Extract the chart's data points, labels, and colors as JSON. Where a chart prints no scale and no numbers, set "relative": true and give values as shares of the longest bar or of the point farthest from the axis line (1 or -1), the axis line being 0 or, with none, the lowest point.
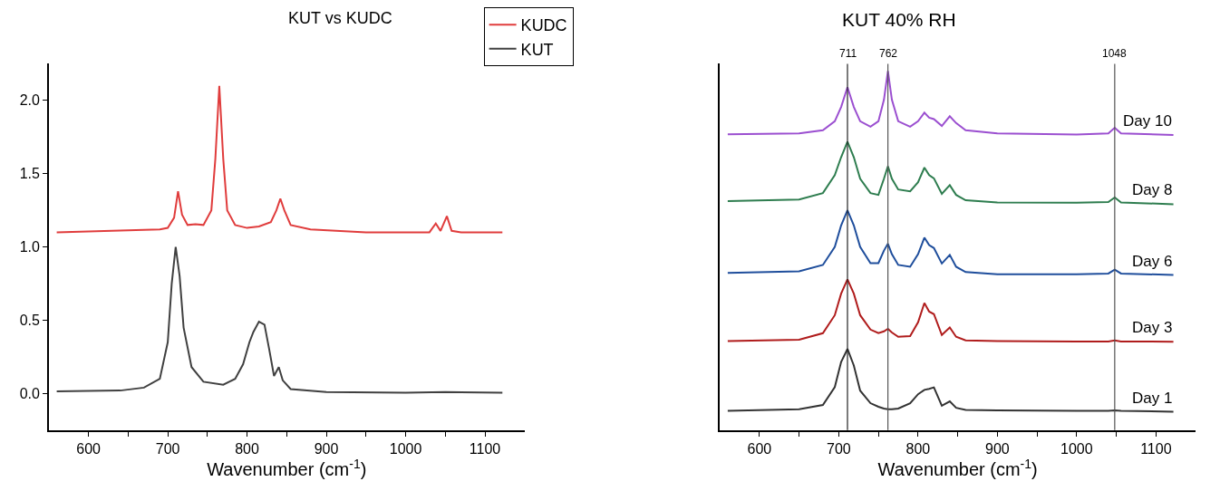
{
  "chart_data": [
    {
      "type": "line",
      "title": "KUT vs KUDC",
      "xlabel": "Wavenumber (cm$^{-1}$)",
      "xlim": [
        550,
        1150
      ],
      "ylim": [
        -0.25,
        2.25
      ],
      "xticks": [
        600,
        {
          "value": 650,
          "label": null
        },
        700,
        {
          "value": 750,
          "label": null
        },
        800,
        {
          "value": 850,
          "label": null
        },
        900,
        {
          "value": 950,
          "label": null
        },
        1000,
        {
          "value": 1050,
          "label": null
        },
        1100
      ],
      "yticks": [
        {
          "value": 0,
          "label": "0.0"
        },
        0.5,
        {
          "value": 1,
          "label": "1.0"
        },
        1.5,
        {
          "value": 2,
          "label": "2.0"
        }
      ],
      "legend": "top right",
      "marker": "none",
      "line_style": "solid",
      "series": [
        {
          "name": "KUDC",
          "color": "#e03c3c",
          "x": [
            560,
            690,
            700,
            708,
            713,
            718,
            725,
            735,
            745,
            755,
            760,
            765,
            770,
            775,
            785,
            800,
            815,
            830,
            837,
            842,
            847,
            855,
            880,
            950,
            1030,
            1038,
            1044,
            1052,
            1058,
            1070,
            1122
          ],
          "values": [
            1.1,
            1.12,
            1.13,
            1.2,
            1.38,
            1.22,
            1.15,
            1.155,
            1.15,
            1.25,
            1.6,
            2.1,
            1.6,
            1.25,
            1.15,
            1.13,
            1.14,
            1.17,
            1.25,
            1.33,
            1.25,
            1.15,
            1.12,
            1.1,
            1.1,
            1.16,
            1.11,
            1.21,
            1.11,
            1.1,
            1.1
          ]
        },
        {
          "name": "KUT",
          "color": "#404040",
          "x": [
            560,
            640,
            670,
            690,
            700,
            705,
            710,
            715,
            720,
            730,
            745,
            770,
            785,
            795,
            803,
            808,
            815,
            822,
            828,
            834,
            840,
            845,
            855,
            900,
            1000,
            1050,
            1122
          ],
          "values": [
            0.015,
            0.02,
            0.04,
            0.1,
            0.35,
            0.75,
            1.0,
            0.8,
            0.45,
            0.18,
            0.08,
            0.06,
            0.1,
            0.2,
            0.35,
            0.42,
            0.49,
            0.47,
            0.3,
            0.12,
            0.18,
            0.09,
            0.03,
            0.01,
            0.005,
            0.01,
            0.005
          ]
        }
      ]
    },
    {
      "type": "line",
      "title": "KUT 40% RH",
      "xlabel": "Wavenumber (cm$^{-1}$)",
      "xlim": [
        550,
        1150
      ],
      "relative": true,
      "xticks": [
        600,
        {
          "value": 650,
          "label": null
        },
        700,
        {
          "value": 750,
          "label": null
        },
        800,
        {
          "value": 850,
          "label": null
        },
        900,
        {
          "value": 950,
          "label": null
        },
        1000,
        {
          "value": 1050,
          "label": null
        },
        1100
      ],
      "marker": "none",
      "line_style": "solid",
      "ref_lines": [
        {
          "axis": "x",
          "value": 711,
          "label": "711",
          "color": "#222222"
        },
        {
          "axis": "x",
          "value": 762,
          "label": "762",
          "color": "#555555"
        },
        {
          "axis": "x",
          "value": 1048,
          "label": "1048",
          "color": "#555555"
        }
      ],
      "x": [
        560,
        650,
        680,
        695,
        703,
        711,
        719,
        727,
        740,
        750,
        757,
        762,
        767,
        775,
        790,
        800,
        808,
        814,
        820,
        830,
        840,
        848,
        860,
        900,
        1000,
        1040,
        1048,
        1056,
        1122
      ],
      "series": [
        {
          "name": "Day 10",
          "color": "#9b4fd0",
          "values": [
            0.824,
            0.826,
            0.835,
            0.86,
            0.9,
            0.955,
            0.9,
            0.86,
            0.845,
            0.86,
            0.92,
            1.0,
            0.92,
            0.86,
            0.845,
            0.86,
            0.884,
            0.87,
            0.866,
            0.847,
            0.874,
            0.855,
            0.835,
            0.826,
            0.823,
            0.826,
            0.842,
            0.826,
            0.822
          ]
        },
        {
          "name": "Day 8",
          "color": "#2e7d4f",
          "values": [
            0.638,
            0.642,
            0.66,
            0.71,
            0.76,
            0.803,
            0.76,
            0.7,
            0.66,
            0.655,
            0.7,
            0.735,
            0.7,
            0.67,
            0.665,
            0.69,
            0.731,
            0.71,
            0.701,
            0.658,
            0.682,
            0.655,
            0.64,
            0.634,
            0.633,
            0.635,
            0.648,
            0.634,
            0.629
          ]
        },
        {
          "name": "Day 6",
          "color": "#1f4e9c",
          "values": [
            0.438,
            0.442,
            0.46,
            0.51,
            0.57,
            0.612,
            0.57,
            0.51,
            0.465,
            0.465,
            0.5,
            0.519,
            0.49,
            0.46,
            0.455,
            0.49,
            0.536,
            0.515,
            0.507,
            0.464,
            0.488,
            0.455,
            0.44,
            0.434,
            0.434,
            0.436,
            0.447,
            0.436,
            0.432
          ]
        },
        {
          "name": "Day 3",
          "color": "#b01c1c",
          "values": [
            0.248,
            0.252,
            0.27,
            0.32,
            0.38,
            0.42,
            0.38,
            0.32,
            0.28,
            0.27,
            0.275,
            0.282,
            0.272,
            0.26,
            0.262,
            0.3,
            0.354,
            0.33,
            0.323,
            0.265,
            0.286,
            0.26,
            0.25,
            0.248,
            0.247,
            0.247,
            0.25,
            0.247,
            0.246
          ]
        },
        {
          "name": "Day 1",
          "color": "#333333",
          "values": [
            0.054,
            0.058,
            0.07,
            0.12,
            0.19,
            0.226,
            0.18,
            0.11,
            0.075,
            0.065,
            0.06,
            0.058,
            0.058,
            0.06,
            0.075,
            0.1,
            0.112,
            0.115,
            0.119,
            0.068,
            0.08,
            0.062,
            0.056,
            0.055,
            0.054,
            0.054,
            0.055,
            0.054,
            0.051
          ]
        }
      ]
    }
  ]
}
